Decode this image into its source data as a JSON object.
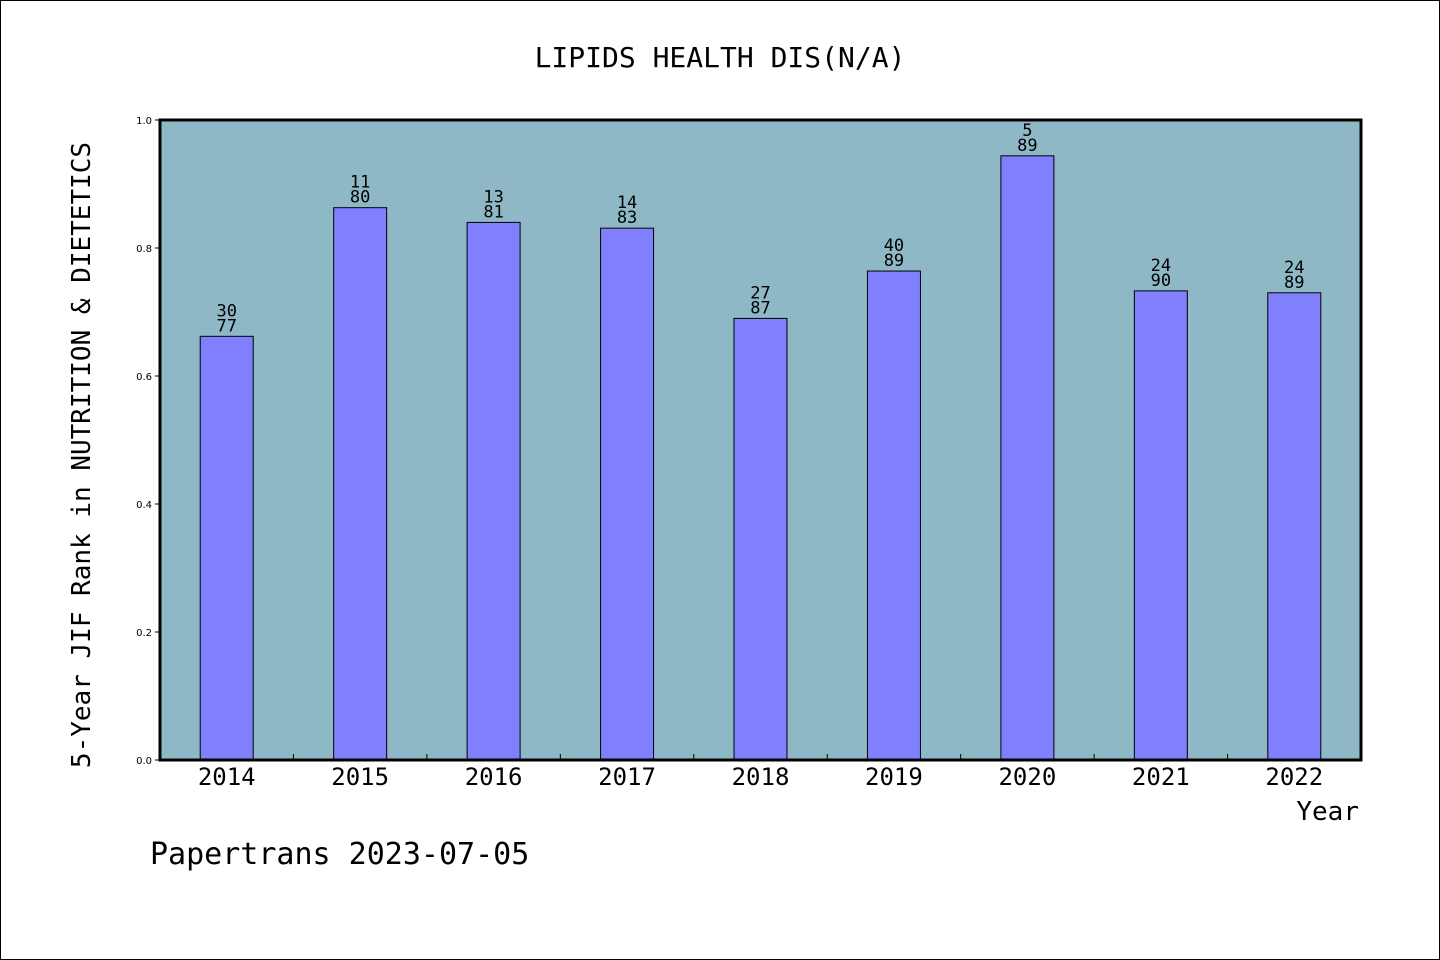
{
  "chart_data": {
    "type": "bar",
    "title": "LIPIDS HEALTH DIS(N/A)",
    "xlabel": "Year",
    "ylabel": "5-Year JIF Rank in NUTRITION & DIETETICS",
    "categories": [
      "2014",
      "2015",
      "2016",
      "2017",
      "2018",
      "2019",
      "2020",
      "2021",
      "2022"
    ],
    "values": [
      0.662,
      0.863,
      0.84,
      0.831,
      0.69,
      0.764,
      0.944,
      0.733,
      0.73
    ],
    "bar_labels": [
      {
        "top": "30",
        "bottom": "77"
      },
      {
        "top": "11",
        "bottom": "80"
      },
      {
        "top": "13",
        "bottom": "81"
      },
      {
        "top": "14",
        "bottom": "83"
      },
      {
        "top": "27",
        "bottom": "87"
      },
      {
        "top": "40",
        "bottom": "89"
      },
      {
        "top": "5",
        "bottom": "89"
      },
      {
        "top": "24",
        "bottom": "90"
      },
      {
        "top": "24",
        "bottom": "89"
      }
    ],
    "ylim": [
      0,
      1.0
    ],
    "yticks": [
      "0.0",
      "0.2",
      "0.4",
      "0.6",
      "0.8",
      "1.0"
    ],
    "grid": false,
    "colors": {
      "plot_background": "#8fb8c6",
      "bar": "#8080ff",
      "bar_edge": "#000000"
    }
  },
  "footer": {
    "credit": "Papertrans 2023-07-05"
  }
}
